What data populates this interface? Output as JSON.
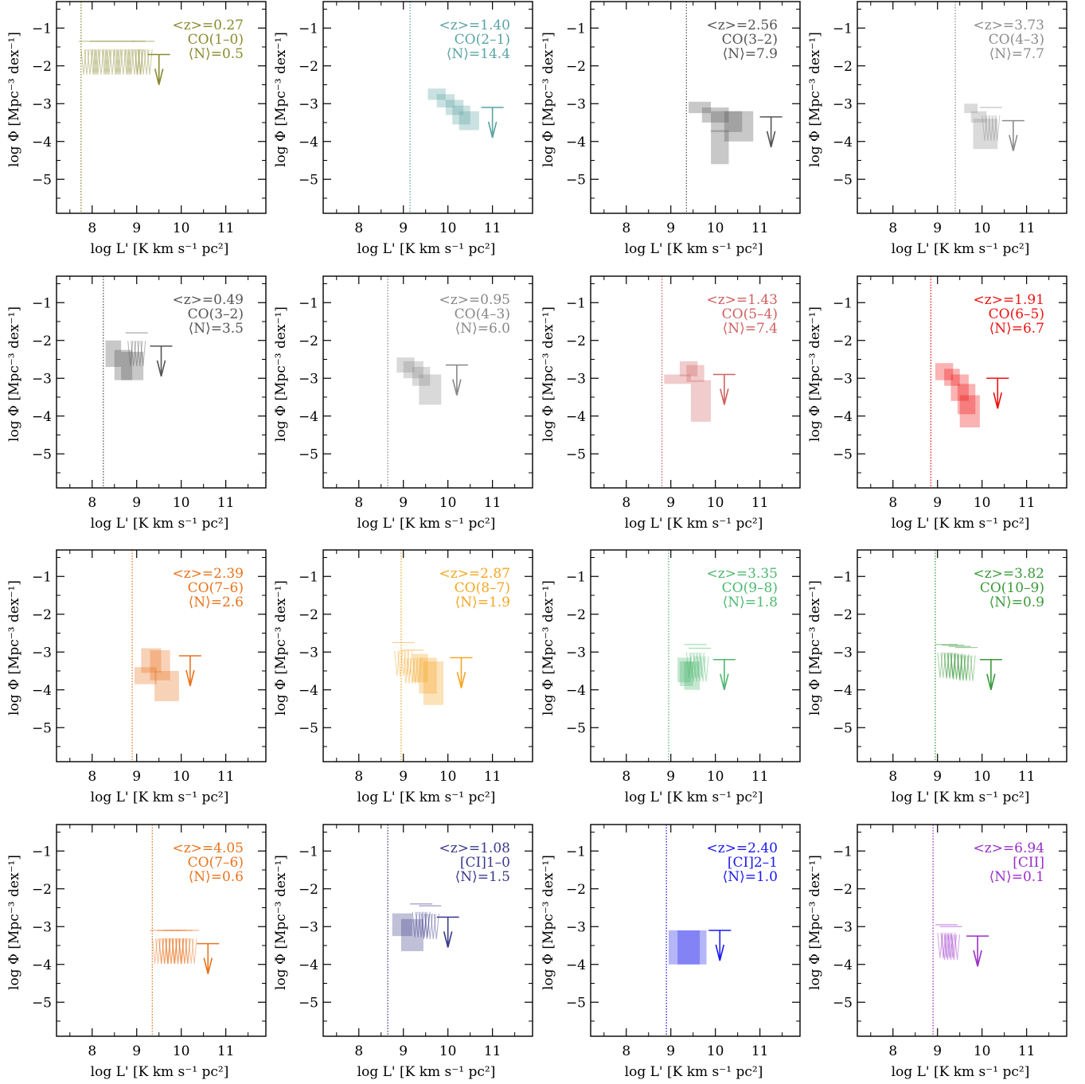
{
  "chart_data": [
    {
      "type": "scatter",
      "xlabel": "log L' [K km s⁻¹ pc²]",
      "ylabel": "log Φ [Mpc⁻³ dex⁻¹]",
      "xlim": [
        7.2,
        11.9
      ],
      "ylim": [
        -5.9,
        -0.3
      ],
      "xticks": [
        "8",
        "9",
        "10",
        "11"
      ],
      "yticks": [
        "−1",
        "−2",
        "−3",
        "−4",
        "−5"
      ],
      "color": "#8a8a2e",
      "annotation": [
        "<z>=0.27",
        "CO(1–0)",
        "⟨N⟩=0.5"
      ],
      "limit_x": 7.75,
      "boxes": [],
      "upper_limits": [
        {
          "x": 7.95,
          "y": -1.35
        },
        {
          "x": 8.2,
          "y": -1.35
        },
        {
          "x": 8.45,
          "y": -1.35
        },
        {
          "x": 8.7,
          "y": -1.35
        },
        {
          "x": 8.95,
          "y": -1.35
        },
        {
          "x": 9.15,
          "y": -1.35
        }
      ],
      "arrow": {
        "x": 9.5,
        "y": -1.7
      }
    },
    {
      "type": "scatter",
      "xlabel": "log L' [K km s⁻¹ pc²]",
      "ylabel": "log Φ [Mpc⁻³ dex⁻¹]",
      "xlim": [
        7.2,
        11.9
      ],
      "ylim": [
        -5.9,
        -0.3
      ],
      "xticks": [
        "8",
        "9",
        "10",
        "11"
      ],
      "yticks": [
        "−1",
        "−2",
        "−3",
        "−4",
        "−5"
      ],
      "color": "#5aa3a3",
      "annotation": [
        "<z>=1.40",
        "CO(2–1)",
        "⟨N⟩=14.4"
      ],
      "limit_x": 9.15,
      "boxes": [
        {
          "x0": 9.55,
          "x1": 9.95,
          "y0": -2.9,
          "y1": -2.6
        },
        {
          "x0": 9.75,
          "x1": 10.15,
          "y0": -3.1,
          "y1": -2.75
        },
        {
          "x0": 9.95,
          "x1": 10.35,
          "y0": -3.3,
          "y1": -2.9
        },
        {
          "x0": 10.1,
          "x1": 10.5,
          "y0": -3.55,
          "y1": -3.05
        },
        {
          "x0": 10.25,
          "x1": 10.7,
          "y0": -3.7,
          "y1": -3.2
        }
      ],
      "upper_limits": [],
      "arrow": {
        "x": 11.0,
        "y": -3.1
      }
    },
    {
      "type": "scatter",
      "xlabel": "log L' [K km s⁻¹ pc²]",
      "ylabel": "log Φ [Mpc⁻³ dex⁻¹]",
      "xlim": [
        7.2,
        11.9
      ],
      "ylim": [
        -5.9,
        -0.3
      ],
      "xticks": [
        "8",
        "9",
        "10",
        "11"
      ],
      "yticks": [
        "−1",
        "−2",
        "−3",
        "−4",
        "−5"
      ],
      "color": "#555555",
      "annotation": [
        "<z>=2.56",
        "CO(3–2)",
        "⟨N⟩=7.9"
      ],
      "limit_x": 9.35,
      "boxes": [
        {
          "x0": 9.4,
          "x1": 9.9,
          "y0": -3.25,
          "y1": -2.95
        },
        {
          "x0": 9.7,
          "x1": 10.3,
          "y0": -3.5,
          "y1": -3.1
        },
        {
          "x0": 9.9,
          "x1": 10.6,
          "y0": -3.75,
          "y1": -3.2
        },
        {
          "x0": 10.2,
          "x1": 10.85,
          "y0": -4.0,
          "y1": -3.2
        },
        {
          "x0": 9.9,
          "x1": 10.3,
          "y0": -4.6,
          "y1": -3.7
        }
      ],
      "upper_limits": [],
      "arrow": {
        "x": 11.25,
        "y": -3.35
      }
    },
    {
      "type": "scatter",
      "xlabel": "log L' [K km s⁻¹ pc²]",
      "ylabel": "log Φ [Mpc⁻³ dex⁻¹]",
      "xlim": [
        7.2,
        11.9
      ],
      "ylim": [
        -5.9,
        -0.3
      ],
      "xticks": [
        "8",
        "9",
        "10",
        "11"
      ],
      "yticks": [
        "−1",
        "−2",
        "−3",
        "−4",
        "−5"
      ],
      "color": "#8c8c8c",
      "annotation": [
        "<z>=3.73",
        "CO(4–3)",
        "⟨N⟩=7.7"
      ],
      "limit_x": 9.4,
      "boxes": [
        {
          "x0": 9.6,
          "x1": 9.9,
          "y0": -3.25,
          "y1": -3.0
        },
        {
          "x0": 9.75,
          "x1": 10.1,
          "y0": -3.5,
          "y1": -3.2
        },
        {
          "x0": 9.8,
          "x1": 10.35,
          "y0": -4.2,
          "y1": -3.4
        }
      ],
      "upper_limits": [
        {
          "x": 10.2,
          "y": -3.1
        }
      ],
      "arrow": {
        "x": 10.7,
        "y": -3.45
      }
    },
    {
      "type": "scatter",
      "xlabel": "log L' [K km s⁻¹ pc²]",
      "ylabel": "log Φ [Mpc⁻³ dex⁻¹]",
      "xlim": [
        7.2,
        11.9
      ],
      "ylim": [
        -5.9,
        -0.3
      ],
      "xticks": [
        "8",
        "9",
        "10",
        "11"
      ],
      "yticks": [
        "−1",
        "−2",
        "−3",
        "−4",
        "−5"
      ],
      "color": "#555555",
      "annotation": [
        "<z>=0.49",
        "CO(3–2)",
        "⟨N⟩=3.5"
      ],
      "limit_x": 8.25,
      "boxes": [
        {
          "x0": 8.3,
          "x1": 8.65,
          "y0": -2.7,
          "y1": -2.0
        },
        {
          "x0": 8.5,
          "x1": 8.9,
          "y0": -3.05,
          "y1": -2.25
        },
        {
          "x0": 8.65,
          "x1": 9.15,
          "y0": -3.05,
          "y1": -2.3
        }
      ],
      "upper_limits": [
        {
          "x": 9.0,
          "y": -1.8
        }
      ],
      "arrow": {
        "x": 9.55,
        "y": -2.15
      }
    },
    {
      "type": "scatter",
      "xlabel": "log L' [K km s⁻¹ pc²]",
      "ylabel": "log Φ [Mpc⁻³ dex⁻¹]",
      "xlim": [
        7.2,
        11.9
      ],
      "ylim": [
        -5.9,
        -0.3
      ],
      "xticks": [
        "8",
        "9",
        "10",
        "11"
      ],
      "yticks": [
        "−1",
        "−2",
        "−3",
        "−4",
        "−5"
      ],
      "color": "#888888",
      "annotation": [
        "<z>=0.95",
        "CO(4–3)",
        "⟨N⟩=6.0"
      ],
      "limit_x": 8.65,
      "boxes": [
        {
          "x0": 8.85,
          "x1": 9.25,
          "y0": -2.85,
          "y1": -2.45
        },
        {
          "x0": 9.0,
          "x1": 9.45,
          "y0": -3.0,
          "y1": -2.55
        },
        {
          "x0": 9.2,
          "x1": 9.6,
          "y0": -3.2,
          "y1": -2.7
        },
        {
          "x0": 9.35,
          "x1": 9.85,
          "y0": -3.7,
          "y1": -2.9
        }
      ],
      "upper_limits": [],
      "arrow": {
        "x": 10.2,
        "y": -2.65
      }
    },
    {
      "type": "scatter",
      "xlabel": "log L' [K km s⁻¹ pc²]",
      "ylabel": "log Φ [Mpc⁻³ dex⁻¹]",
      "xlim": [
        7.2,
        11.9
      ],
      "ylim": [
        -5.9,
        -0.3
      ],
      "xticks": [
        "8",
        "9",
        "10",
        "11"
      ],
      "yticks": [
        "−1",
        "−2",
        "−3",
        "−4",
        "−5"
      ],
      "color": "#d06060",
      "annotation": [
        "<z>=1.43",
        "CO(5–4)",
        "⟨N⟩=7.4"
      ],
      "limit_x": 8.8,
      "boxes": [
        {
          "x0": 9.2,
          "x1": 9.6,
          "y0": -2.95,
          "y1": -2.55
        },
        {
          "x0": 9.35,
          "x1": 9.75,
          "y0": -3.1,
          "y1": -2.65
        },
        {
          "x0": 8.85,
          "x1": 9.45,
          "y0": -3.15,
          "y1": -2.9
        },
        {
          "x0": 9.45,
          "x1": 9.9,
          "y0": -4.15,
          "y1": -3.05
        }
      ],
      "upper_limits": [],
      "arrow": {
        "x": 10.2,
        "y": -2.9
      }
    },
    {
      "type": "scatter",
      "xlabel": "log L' [K km s⁻¹ pc²]",
      "ylabel": "log Φ [Mpc⁻³ dex⁻¹]",
      "xlim": [
        7.2,
        11.9
      ],
      "ylim": [
        -5.9,
        -0.3
      ],
      "xticks": [
        "8",
        "9",
        "10",
        "11"
      ],
      "yticks": [
        "−1",
        "−2",
        "−3",
        "−4",
        "−5"
      ],
      "color": "#ee1111",
      "annotation": [
        "<z>=1.91",
        "CO(6–5)",
        "⟨N⟩=6.7"
      ],
      "limit_x": 8.85,
      "boxes": [
        {
          "x0": 8.95,
          "x1": 9.35,
          "y0": -3.05,
          "y1": -2.6
        },
        {
          "x0": 9.15,
          "x1": 9.5,
          "y0": -3.2,
          "y1": -2.75
        },
        {
          "x0": 9.3,
          "x1": 9.7,
          "y0": -3.6,
          "y1": -2.9
        },
        {
          "x0": 9.45,
          "x1": 9.85,
          "y0": -3.95,
          "y1": -3.15
        },
        {
          "x0": 9.5,
          "x1": 9.95,
          "y0": -4.3,
          "y1": -3.45
        }
      ],
      "upper_limits": [],
      "arrow": {
        "x": 10.35,
        "y": -3.0
      }
    },
    {
      "type": "scatter",
      "xlabel": "log L' [K km s⁻¹ pc²]",
      "ylabel": "log Φ [Mpc⁻³ dex⁻¹]",
      "xlim": [
        7.2,
        11.9
      ],
      "ylim": [
        -5.9,
        -0.3
      ],
      "xticks": [
        "8",
        "9",
        "10",
        "11"
      ],
      "yticks": [
        "−1",
        "−2",
        "−3",
        "−4",
        "−5"
      ],
      "color": "#e8741e",
      "annotation": [
        "<z>=2.39",
        "CO(7–6)",
        "⟨N⟩=2.6"
      ],
      "limit_x": 8.9,
      "boxes": [
        {
          "x0": 9.1,
          "x1": 9.55,
          "y0": -3.55,
          "y1": -2.9
        },
        {
          "x0": 9.3,
          "x1": 9.75,
          "y0": -3.75,
          "y1": -2.95
        },
        {
          "x0": 8.95,
          "x1": 9.45,
          "y0": -3.85,
          "y1": -3.4
        },
        {
          "x0": 9.4,
          "x1": 9.95,
          "y0": -4.3,
          "y1": -3.5
        }
      ],
      "upper_limits": [],
      "arrow": {
        "x": 10.2,
        "y": -3.1
      }
    },
    {
      "type": "scatter",
      "xlabel": "log L' [K km s⁻¹ pc²]",
      "ylabel": "log Φ [Mpc⁻³ dex⁻¹]",
      "xlim": [
        7.2,
        11.9
      ],
      "ylim": [
        -5.9,
        -0.3
      ],
      "xticks": [
        "8",
        "9",
        "10",
        "11"
      ],
      "yticks": [
        "−1",
        "−2",
        "−3",
        "−4",
        "−5"
      ],
      "color": "#f5a623",
      "annotation": [
        "<z>=2.87",
        "CO(8–7)",
        "⟨N⟩=1.9"
      ],
      "limit_x": 8.95,
      "boxes": [
        {
          "x0": 9.2,
          "x1": 9.55,
          "y0": -3.8,
          "y1": -3.05
        },
        {
          "x0": 9.35,
          "x1": 9.75,
          "y0": -4.1,
          "y1": -3.15
        },
        {
          "x0": 9.45,
          "x1": 9.9,
          "y0": -4.4,
          "y1": -3.25
        }
      ],
      "upper_limits": [
        {
          "x": 9.0,
          "y": -2.75
        },
        {
          "x": 9.2,
          "y": -2.95
        }
      ],
      "arrow": {
        "x": 10.3,
        "y": -3.15
      }
    },
    {
      "type": "scatter",
      "xlabel": "log L' [K km s⁻¹ pc²]",
      "ylabel": "log Φ [Mpc⁻³ dex⁻¹]",
      "xlim": [
        7.2,
        11.9
      ],
      "ylim": [
        -5.9,
        -0.3
      ],
      "xticks": [
        "8",
        "9",
        "10",
        "11"
      ],
      "yticks": [
        "−1",
        "−2",
        "−3",
        "−4",
        "−5"
      ],
      "color": "#4db870",
      "annotation": [
        "<z>=3.35",
        "CO(9–8)",
        "⟨N⟩=1.8"
      ],
      "limit_x": 8.95,
      "boxes": [
        {
          "x0": 9.15,
          "x1": 9.45,
          "y0": -3.8,
          "y1": -3.15
        },
        {
          "x0": 9.2,
          "x1": 9.5,
          "y0": -3.9,
          "y1": -3.25
        },
        {
          "x0": 9.3,
          "x1": 9.65,
          "y0": -4.0,
          "y1": -3.25
        }
      ],
      "upper_limits": [
        {
          "x": 9.55,
          "y": -2.8
        },
        {
          "x": 9.65,
          "y": -2.9
        }
      ],
      "arrow": {
        "x": 10.2,
        "y": -3.2
      }
    },
    {
      "type": "scatter",
      "xlabel": "log L' [K km s⁻¹ pc²]",
      "ylabel": "log Φ [Mpc⁻³ dex⁻¹]",
      "xlim": [
        7.2,
        11.9
      ],
      "ylim": [
        -5.9,
        -0.3
      ],
      "xticks": [
        "8",
        "9",
        "10",
        "11"
      ],
      "yticks": [
        "−1",
        "−2",
        "−3",
        "−4",
        "−5"
      ],
      "color": "#3a9a3a",
      "annotation": [
        "<z>=3.82",
        "CO(10–9)",
        "⟨N⟩=0.9"
      ],
      "limit_x": 8.95,
      "boxes": [],
      "upper_limits": [
        {
          "x": 9.2,
          "y": -2.8
        },
        {
          "x": 9.35,
          "y": -2.82
        },
        {
          "x": 9.5,
          "y": -2.85
        },
        {
          "x": 9.65,
          "y": -2.88
        }
      ],
      "arrow": {
        "x": 10.2,
        "y": -3.2
      }
    },
    {
      "type": "scatter",
      "xlabel": "log L' [K km s⁻¹ pc²]",
      "ylabel": "log Φ [Mpc⁻³ dex⁻¹]",
      "xlim": [
        7.2,
        11.9
      ],
      "ylim": [
        -5.9,
        -0.3
      ],
      "xticks": [
        "8",
        "9",
        "10",
        "11"
      ],
      "yticks": [
        "−1",
        "−2",
        "−3",
        "−4",
        "−5"
      ],
      "color": "#e8741e",
      "annotation": [
        "<z>=4.05",
        "CO(7–6)",
        "⟨N⟩=0.6"
      ],
      "limit_x": 9.35,
      "boxes": [],
      "upper_limits": [
        {
          "x": 9.55,
          "y": -3.1
        },
        {
          "x": 9.7,
          "y": -3.1
        },
        {
          "x": 9.85,
          "y": -3.1
        },
        {
          "x": 10.0,
          "y": -3.1
        },
        {
          "x": 10.15,
          "y": -3.1
        }
      ],
      "arrow": {
        "x": 10.6,
        "y": -3.45
      }
    },
    {
      "type": "scatter",
      "xlabel": "log L' [K km s⁻¹ pc²]",
      "ylabel": "log Φ [Mpc⁻³ dex⁻¹]",
      "xlim": [
        7.2,
        11.9
      ],
      "ylim": [
        -5.9,
        -0.3
      ],
      "xticks": [
        "8",
        "9",
        "10",
        "11"
      ],
      "yticks": [
        "−1",
        "−2",
        "−3",
        "−4",
        "−5"
      ],
      "color": "#3a3a8a",
      "annotation": [
        "<z>=1.08",
        "[CI]1–0",
        "⟨N⟩=1.5"
      ],
      "limit_x": 8.65,
      "boxes": [
        {
          "x0": 8.75,
          "x1": 9.2,
          "y0": -3.25,
          "y1": -2.65
        },
        {
          "x0": 8.95,
          "x1": 9.45,
          "y0": -3.65,
          "y1": -2.8
        }
      ],
      "upper_limits": [
        {
          "x": 9.4,
          "y": -2.4
        },
        {
          "x": 9.6,
          "y": -2.45
        }
      ],
      "arrow": {
        "x": 10.0,
        "y": -2.75
      }
    },
    {
      "type": "scatter",
      "xlabel": "log L' [K km s⁻¹ pc²]",
      "ylabel": "log Φ [Mpc⁻³ dex⁻¹]",
      "xlim": [
        7.2,
        11.9
      ],
      "ylim": [
        -5.9,
        -0.3
      ],
      "xticks": [
        "8",
        "9",
        "10",
        "11"
      ],
      "yticks": [
        "−1",
        "−2",
        "−3",
        "−4",
        "−5"
      ],
      "color": "#1a1aee",
      "annotation": [
        "<z>=2.40",
        "[CI]2–1",
        "⟨N⟩=1.0"
      ],
      "limit_x": 8.9,
      "boxes": [
        {
          "x0": 8.95,
          "x1": 9.65,
          "y0": -4.0,
          "y1": -3.1
        },
        {
          "x0": 9.15,
          "x1": 9.8,
          "y0": -4.0,
          "y1": -3.1
        }
      ],
      "upper_limits": [],
      "arrow": {
        "x": 10.1,
        "y": -3.1
      }
    },
    {
      "type": "scatter",
      "xlabel": "log L' [K km s⁻¹ pc²]",
      "ylabel": "log Φ [Mpc⁻³ dex⁻¹]",
      "xlim": [
        7.2,
        11.9
      ],
      "ylim": [
        -5.9,
        -0.3
      ],
      "xticks": [
        "8",
        "9",
        "10",
        "11"
      ],
      "yticks": [
        "−1",
        "−2",
        "−3",
        "−4",
        "−5"
      ],
      "color": "#9a2ec8",
      "annotation": [
        "<z>=6.94",
        "[CII]",
        "⟨N⟩=0.1"
      ],
      "limit_x": 8.9,
      "boxes": [],
      "upper_limits": [
        {
          "x": 9.2,
          "y": -2.95
        },
        {
          "x": 9.3,
          "y": -3.0
        }
      ],
      "arrow": {
        "x": 9.9,
        "y": -3.25
      }
    }
  ]
}
